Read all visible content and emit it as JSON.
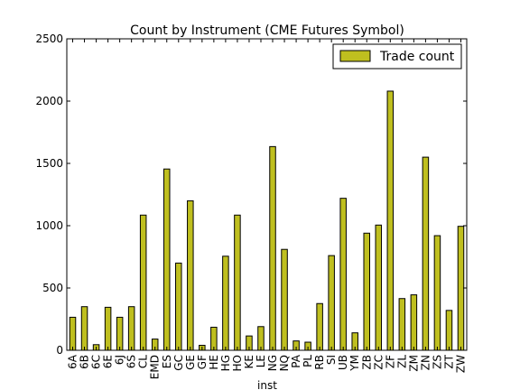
{
  "chart_data": {
    "type": "bar",
    "title": "Count by Instrument (CME Futures Symbol)",
    "xlabel": "inst",
    "ylabel": "",
    "ylim": [
      0,
      2500
    ],
    "yticks": [
      0,
      500,
      1000,
      1500,
      2000,
      2500
    ],
    "grid": false,
    "legend_position": "top-right",
    "bar_color": "#bfbf1f",
    "categories": [
      "6A",
      "6B",
      "6C",
      "6E",
      "6J",
      "6S",
      "CL",
      "EMD",
      "ES",
      "GC",
      "GE",
      "GF",
      "HE",
      "HG",
      "HO",
      "KE",
      "LE",
      "NG",
      "NQ",
      "PA",
      "PL",
      "RB",
      "SI",
      "UB",
      "YM",
      "ZB",
      "ZC",
      "ZF",
      "ZL",
      "ZM",
      "ZN",
      "ZS",
      "ZT",
      "ZW"
    ],
    "series": [
      {
        "name": "Trade count",
        "values": [
          265,
          350,
          45,
          345,
          265,
          350,
          1085,
          90,
          1455,
          700,
          1200,
          40,
          185,
          755,
          1085,
          115,
          190,
          1635,
          810,
          75,
          65,
          375,
          760,
          1220,
          140,
          940,
          1005,
          2080,
          415,
          445,
          1550,
          920,
          320,
          995
        ]
      }
    ]
  }
}
